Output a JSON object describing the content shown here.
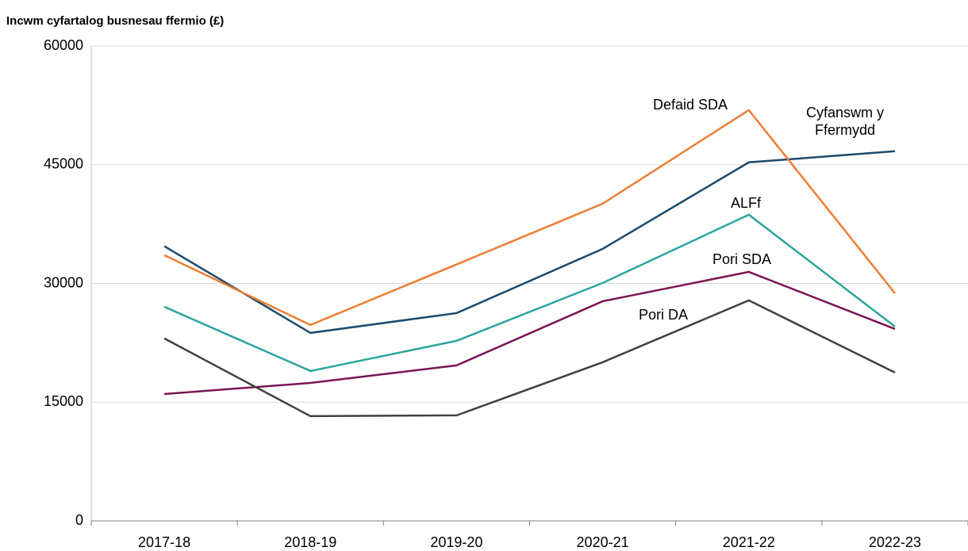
{
  "chart_data": {
    "type": "line",
    "title": "Incwm cyfartalog busnesau ffermio (£)",
    "categories": [
      "2017-18",
      "2018-19",
      "2019-20",
      "2020-21",
      "2021-22",
      "2022-23"
    ],
    "series": [
      {
        "name": "Cyfanswm y Ffermydd",
        "color": "#1b4a6e",
        "values": [
          34700,
          23750,
          26250,
          34370,
          45300,
          46700
        ]
      },
      {
        "name": "Defaid SDA",
        "color": "#ed7d31",
        "values": [
          33570,
          24750,
          32400,
          40080,
          51900,
          28760
        ]
      },
      {
        "name": "ALFf",
        "color": "#2ca59d",
        "values": [
          27050,
          18940,
          22750,
          30060,
          38680,
          24550
        ]
      },
      {
        "name": "Pori SDA",
        "color": "#7b1553",
        "values": [
          16030,
          17430,
          19640,
          27750,
          31460,
          24250
        ]
      },
      {
        "name": "Pori DA",
        "color": "#404040",
        "values": [
          23050,
          13230,
          13330,
          20040,
          27860,
          18740
        ]
      }
    ],
    "ylim": [
      0,
      60000
    ],
    "yticks": [
      0,
      15000,
      30000,
      45000,
      60000
    ],
    "grid": true
  }
}
